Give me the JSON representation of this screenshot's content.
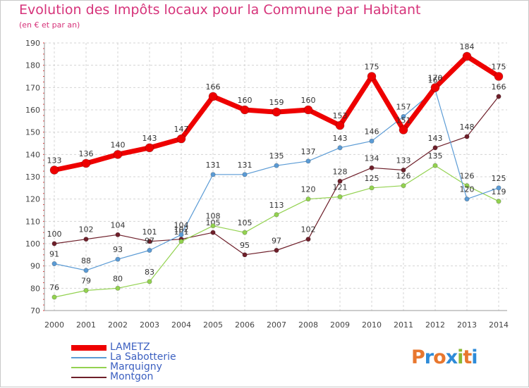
{
  "title": "Evolution des Impôts locaux pour la Commune par Habitant",
  "subtitle": "(en € et par an)",
  "logo": {
    "text": "Proxiti",
    "colors": [
      "#e8772e",
      "#2e8bd8",
      "#e8772e",
      "#2e8bd8",
      "#8ab833",
      "#e8772e",
      "#2e8bd8"
    ]
  },
  "chart_data": {
    "type": "line",
    "x": [
      2000,
      2001,
      2002,
      2003,
      2004,
      2005,
      2006,
      2007,
      2008,
      2009,
      2010,
      2011,
      2012,
      2013,
      2014
    ],
    "ylim": [
      70,
      190
    ],
    "yticks": [
      70,
      80,
      90,
      100,
      110,
      120,
      130,
      140,
      150,
      160,
      170,
      180,
      190
    ],
    "grid": true,
    "legend_position": "bottom-left",
    "series": [
      {
        "name": "Montgon",
        "color": "#6e1f2a",
        "width": 1.2,
        "values": [
          100,
          102,
          104,
          101,
          102,
          105,
          95,
          97,
          102,
          128,
          134,
          133,
          143,
          148,
          166
        ]
      },
      {
        "name": "Marquigny",
        "color": "#93d250",
        "width": 1.2,
        "values": [
          76,
          79,
          80,
          83,
          101,
          108,
          105,
          113,
          120,
          121,
          125,
          126,
          135,
          126,
          119
        ]
      },
      {
        "name": "La Sabotterie",
        "color": "#5b9bd5",
        "width": 1.2,
        "values": [
          91,
          88,
          93,
          97,
          104,
          131,
          131,
          135,
          137,
          143,
          146,
          157,
          169,
          120,
          125
        ]
      },
      {
        "name": "LAMETZ",
        "color": "#ee0000",
        "width": 7,
        "values": [
          133,
          136,
          140,
          143,
          147,
          166,
          160,
          159,
          160,
          153,
          175,
          151,
          170,
          184,
          175
        ]
      }
    ],
    "legend_order": [
      "LAMETZ",
      "La Sabotterie",
      "Marquigny",
      "Montgon"
    ]
  }
}
